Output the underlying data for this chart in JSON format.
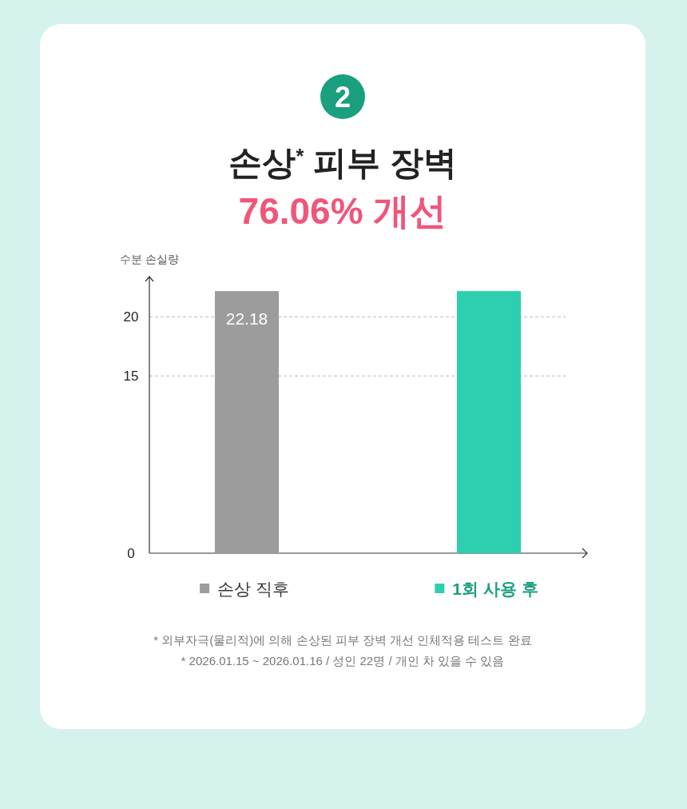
{
  "chart_data": {
    "type": "bar",
    "title": "손상$^{*}$ 피부 장벽",
    "subtitle": "76.06% 개선",
    "ylabel": "수분 손실량",
    "categories": [
      "손상 직후",
      "1회 사용 후"
    ],
    "values": [
      22.18,
      22.18
    ],
    "colors": [
      "#9c9c9c",
      "#2cd0b0"
    ],
    "value_labels": [
      "22.18",
      null
    ],
    "ylim": [
      0,
      23
    ],
    "yticks": [
      0,
      15,
      20
    ],
    "grid": "y",
    "annotations": [
      "2",
      "* 외부자극(물리적)에 의해 손상된 피부 장벽 개선 인체적용 테스트 완료",
      "* 2026.01.15 ~ 2026.01.16 / 성인 22명 / 개인 차 있을 수 있음"
    ]
  }
}
